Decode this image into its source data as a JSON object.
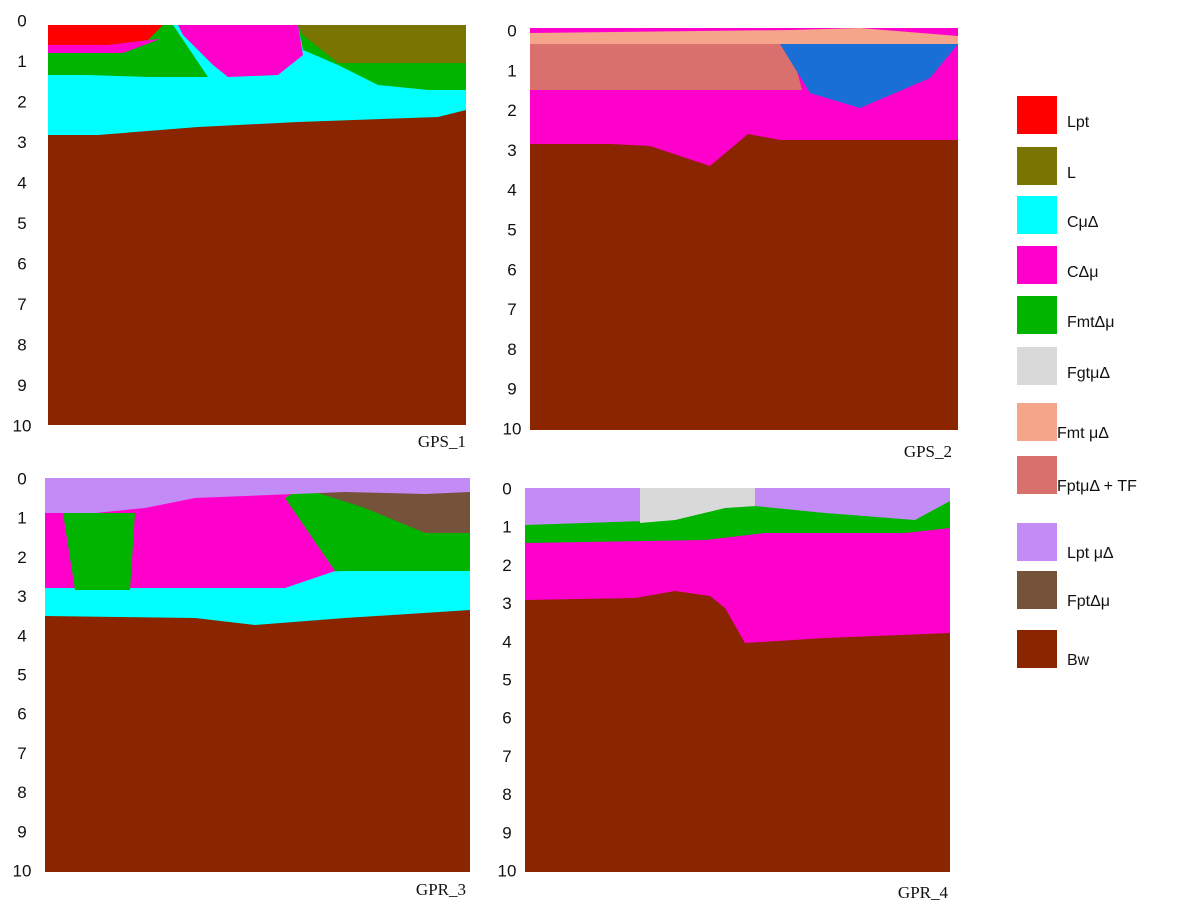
{
  "panels": [
    {
      "label": "GPS_1",
      "ticks": [
        0,
        1,
        2,
        3,
        4,
        5,
        6,
        7,
        8,
        9,
        10
      ]
    },
    {
      "label": "GPS_2",
      "ticks": [
        0,
        1,
        2,
        3,
        4,
        5,
        6,
        7,
        8,
        9,
        10
      ]
    },
    {
      "label": "GPR_3",
      "ticks": [
        0,
        1,
        2,
        3,
        4,
        5,
        6,
        7,
        8,
        9,
        10
      ]
    },
    {
      "label": "GPR_4",
      "ticks": [
        0,
        1,
        2,
        3,
        4,
        5,
        6,
        7,
        8,
        9,
        10
      ]
    }
  ],
  "legend": [
    {
      "label": "Lpt",
      "color": "#ff0000"
    },
    {
      "label": "L",
      "color": "#7a7500"
    },
    {
      "label": "CμΔ",
      "color": "#00ffff"
    },
    {
      "label": "CΔμ",
      "color": "#ff00cc"
    },
    {
      "label": "FmtΔμ",
      "color": "#00b400"
    },
    {
      "label": "FgtμΔ",
      "color": "#d9d9d9"
    },
    {
      "label": "Fmt μΔ",
      "color": "#f4a58a"
    },
    {
      "label": "FptμΔ  + TF",
      "color": "#d9706e"
    },
    {
      "label": "Lpt μΔ",
      "color": "#c38bf5"
    },
    {
      "label": "FptΔμ",
      "color": "#75523a"
    },
    {
      "label": "Bw",
      "color": "#8b2500"
    }
  ]
}
